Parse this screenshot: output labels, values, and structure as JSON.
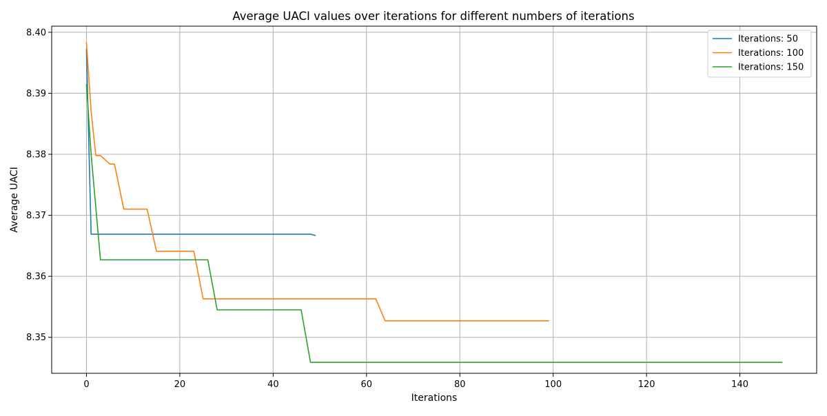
{
  "chart_data": {
    "type": "line",
    "title": "Average UACI values over iterations for different numbers of iterations",
    "xlabel": "Iterations",
    "ylabel": "Average UACI",
    "xlim": [
      -7.45,
      156.45
    ],
    "ylim": [
      8.3441,
      8.401
    ],
    "x_ticks": [
      0,
      20,
      40,
      60,
      80,
      100,
      120,
      140
    ],
    "y_ticks": [
      8.35,
      8.36,
      8.37,
      8.38,
      8.39,
      8.4
    ],
    "x_tick_labels": [
      "0",
      "20",
      "40",
      "60",
      "80",
      "100",
      "120",
      "140"
    ],
    "y_tick_labels": [
      "8.35",
      "8.36",
      "8.37",
      "8.38",
      "8.39",
      "8.40"
    ],
    "grid": true,
    "legend_position": "top-right",
    "series": [
      {
        "name": "Iterations: 50",
        "color": "#1f77b4",
        "points": [
          [
            0,
            8.3972
          ],
          [
            1,
            8.3669
          ],
          [
            48,
            8.3669
          ],
          [
            49,
            8.3667
          ]
        ]
      },
      {
        "name": "Iterations: 100",
        "color": "#ff7f0e",
        "points": [
          [
            0,
            8.3983
          ],
          [
            1,
            8.387
          ],
          [
            2,
            8.3798
          ],
          [
            3,
            8.3798
          ],
          [
            5,
            8.3784
          ],
          [
            6,
            8.3784
          ],
          [
            8,
            8.371
          ],
          [
            13,
            8.371
          ],
          [
            15,
            8.3641
          ],
          [
            23,
            8.3641
          ],
          [
            25,
            8.3563
          ],
          [
            62,
            8.3563
          ],
          [
            64,
            8.3527
          ],
          [
            99,
            8.3527
          ]
        ]
      },
      {
        "name": "Iterations: 150",
        "color": "#2ca02c",
        "points": [
          [
            0,
            8.3914
          ],
          [
            1,
            8.38
          ],
          [
            3,
            8.3627
          ],
          [
            26,
            8.3627
          ],
          [
            28,
            8.3545
          ],
          [
            46,
            8.3545
          ],
          [
            48,
            8.3459
          ],
          [
            149,
            8.3459
          ]
        ]
      }
    ]
  }
}
